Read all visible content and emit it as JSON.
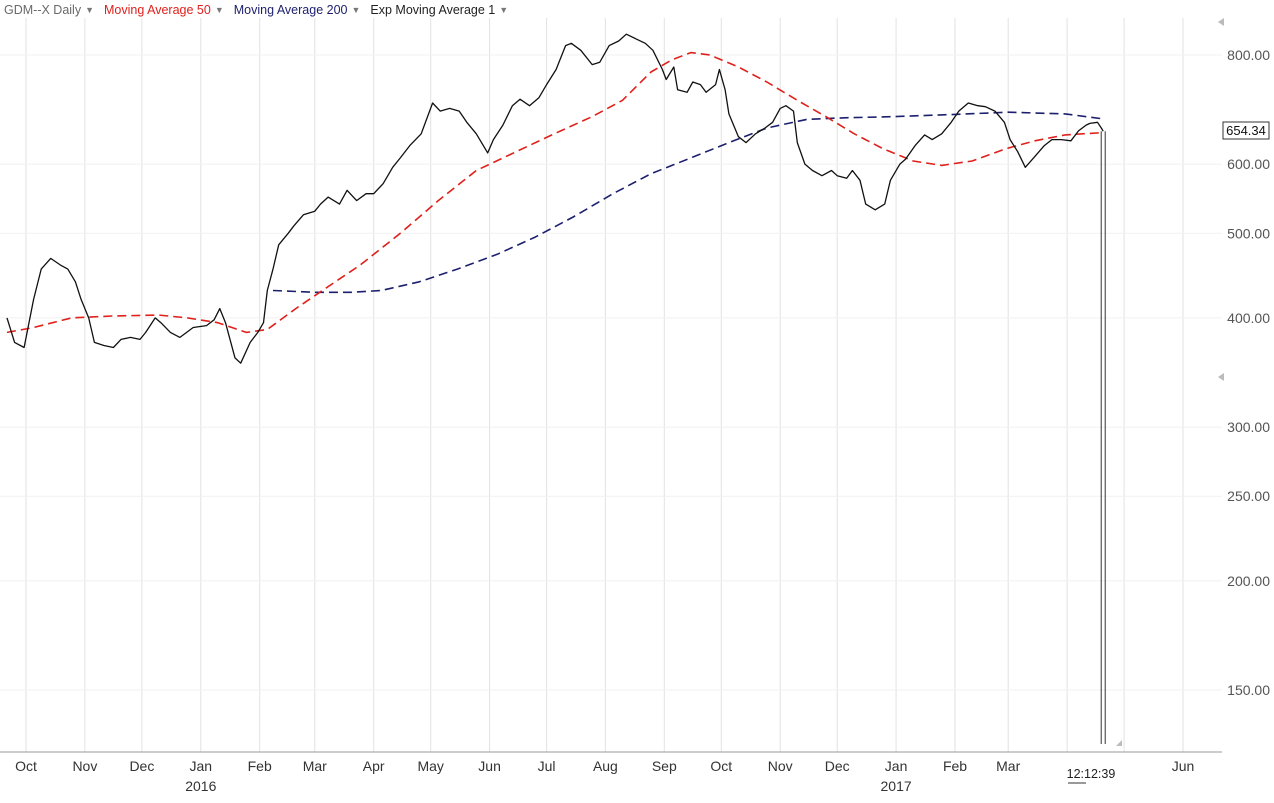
{
  "toolbar": {
    "symbol_study": "GDM--X Daily",
    "ma50_label": "Moving Average 50",
    "ma200_label": "Moving Average 200",
    "ema1_label": "Exp Moving Average 1"
  },
  "last_price_label": "654.34",
  "clock_text": "12:12:39",
  "colors": {
    "price": "#111111",
    "ma50": "#e0201b",
    "ma200": "#1c1f6e",
    "grid": "#e2e2e2",
    "label_symbol": "#6a6a6a",
    "label_black": "#222222"
  },
  "chart_data": {
    "type": "line",
    "y_scale": "log",
    "ylim": [
      130,
      870
    ],
    "y_ticks": [
      "800.00",
      "600.00",
      "500.00",
      "400.00",
      "300.00",
      "250.00",
      "200.00",
      "150.00"
    ],
    "y_tick_values": [
      800,
      600,
      500,
      400,
      300,
      250,
      200,
      150
    ],
    "x_tick_labels": [
      {
        "label": "Oct",
        "date": "2015-10-01"
      },
      {
        "label": "Nov",
        "date": "2015-11-01"
      },
      {
        "label": "Dec",
        "date": "2015-12-01"
      },
      {
        "label": "Jan",
        "date": "2016-01-01"
      },
      {
        "label": "Feb",
        "date": "2016-02-01"
      },
      {
        "label": "Mar",
        "date": "2016-03-01"
      },
      {
        "label": "Apr",
        "date": "2016-04-01"
      },
      {
        "label": "May",
        "date": "2016-05-01"
      },
      {
        "label": "Jun",
        "date": "2016-06-01"
      },
      {
        "label": "Jul",
        "date": "2016-07-01"
      },
      {
        "label": "Aug",
        "date": "2016-08-01"
      },
      {
        "label": "Sep",
        "date": "2016-09-01"
      },
      {
        "label": "Oct",
        "date": "2016-10-01"
      },
      {
        "label": "Nov",
        "date": "2016-11-01"
      },
      {
        "label": "Dec",
        "date": "2016-12-01"
      },
      {
        "label": "Jan",
        "date": "2017-01-01"
      },
      {
        "label": "Feb",
        "date": "2017-02-01"
      },
      {
        "label": "Mar",
        "date": "2017-03-01"
      },
      {
        "label": "Jun",
        "date": "2017-06-01"
      }
    ],
    "year_labels": [
      {
        "label": "2016",
        "date": "2016-01-01"
      },
      {
        "label": "2017",
        "date": "2017-01-01"
      }
    ],
    "grid_dates": [
      "2015-10-01",
      "2015-11-01",
      "2015-12-01",
      "2016-01-01",
      "2016-02-01",
      "2016-03-01",
      "2016-04-01",
      "2016-05-01",
      "2016-06-01",
      "2016-07-01",
      "2016-08-01",
      "2016-09-01",
      "2016-10-01",
      "2016-11-01",
      "2016-12-01",
      "2017-01-01",
      "2017-02-01",
      "2017-03-01",
      "2017-04-01",
      "2017-05-01",
      "2017-06-01"
    ],
    "series": [
      {
        "name": "GDM--X Daily",
        "style": "solid",
        "points": [
          [
            "2015-09-21",
            400
          ],
          [
            "2015-09-25",
            375
          ],
          [
            "2015-09-30",
            370
          ],
          [
            "2015-10-05",
            420
          ],
          [
            "2015-10-09",
            455
          ],
          [
            "2015-10-14",
            468
          ],
          [
            "2015-10-19",
            460
          ],
          [
            "2015-10-23",
            455
          ],
          [
            "2015-10-27",
            440
          ],
          [
            "2015-10-30",
            420
          ],
          [
            "2015-11-03",
            400
          ],
          [
            "2015-11-06",
            375
          ],
          [
            "2015-11-11",
            372
          ],
          [
            "2015-11-16",
            370
          ],
          [
            "2015-11-20",
            378
          ],
          [
            "2015-11-25",
            380
          ],
          [
            "2015-11-30",
            378
          ],
          [
            "2015-12-03",
            385
          ],
          [
            "2015-12-08",
            400
          ],
          [
            "2015-12-11",
            395
          ],
          [
            "2015-12-16",
            385
          ],
          [
            "2015-12-21",
            380
          ],
          [
            "2015-12-28",
            390
          ],
          [
            "2016-01-04",
            392
          ],
          [
            "2016-01-08",
            398
          ],
          [
            "2016-01-11",
            410
          ],
          [
            "2016-01-14",
            395
          ],
          [
            "2016-01-19",
            360
          ],
          [
            "2016-01-22",
            355
          ],
          [
            "2016-01-27",
            375
          ],
          [
            "2016-01-31",
            385
          ],
          [
            "2016-02-03",
            395
          ],
          [
            "2016-02-05",
            430
          ],
          [
            "2016-02-08",
            455
          ],
          [
            "2016-02-11",
            485
          ],
          [
            "2016-02-16",
            500
          ],
          [
            "2016-02-19",
            510
          ],
          [
            "2016-02-24",
            525
          ],
          [
            "2016-03-01",
            530
          ],
          [
            "2016-03-04",
            540
          ],
          [
            "2016-03-08",
            550
          ],
          [
            "2016-03-14",
            540
          ],
          [
            "2016-03-18",
            560
          ],
          [
            "2016-03-23",
            545
          ],
          [
            "2016-03-28",
            555
          ],
          [
            "2016-04-01",
            555
          ],
          [
            "2016-04-06",
            570
          ],
          [
            "2016-04-11",
            595
          ],
          [
            "2016-04-15",
            610
          ],
          [
            "2016-04-20",
            630
          ],
          [
            "2016-04-26",
            650
          ],
          [
            "2016-05-02",
            705
          ],
          [
            "2016-05-06",
            690
          ],
          [
            "2016-05-11",
            695
          ],
          [
            "2016-05-16",
            690
          ],
          [
            "2016-05-20",
            670
          ],
          [
            "2016-05-25",
            650
          ],
          [
            "2016-05-31",
            618
          ],
          [
            "2016-06-03",
            640
          ],
          [
            "2016-06-08",
            665
          ],
          [
            "2016-06-13",
            700
          ],
          [
            "2016-06-17",
            712
          ],
          [
            "2016-06-22",
            700
          ],
          [
            "2016-06-27",
            715
          ],
          [
            "2016-07-01",
            740
          ],
          [
            "2016-07-06",
            770
          ],
          [
            "2016-07-11",
            820
          ],
          [
            "2016-07-14",
            825
          ],
          [
            "2016-07-19",
            810
          ],
          [
            "2016-07-25",
            780
          ],
          [
            "2016-07-29",
            785
          ],
          [
            "2016-08-03",
            820
          ],
          [
            "2016-08-08",
            830
          ],
          [
            "2016-08-12",
            845
          ],
          [
            "2016-08-17",
            835
          ],
          [
            "2016-08-22",
            825
          ],
          [
            "2016-08-26",
            810
          ],
          [
            "2016-08-31",
            770
          ],
          [
            "2016-09-02",
            750
          ],
          [
            "2016-09-06",
            775
          ],
          [
            "2016-09-08",
            730
          ],
          [
            "2016-09-13",
            725
          ],
          [
            "2016-09-16",
            745
          ],
          [
            "2016-09-20",
            740
          ],
          [
            "2016-09-23",
            725
          ],
          [
            "2016-09-28",
            740
          ],
          [
            "2016-09-30",
            770
          ],
          [
            "2016-10-03",
            730
          ],
          [
            "2016-10-05",
            685
          ],
          [
            "2016-10-10",
            645
          ],
          [
            "2016-10-14",
            635
          ],
          [
            "2016-10-19",
            650
          ],
          [
            "2016-10-24",
            660
          ],
          [
            "2016-10-28",
            670
          ],
          [
            "2016-11-01",
            695
          ],
          [
            "2016-11-04",
            700
          ],
          [
            "2016-11-08",
            690
          ],
          [
            "2016-11-10",
            635
          ],
          [
            "2016-11-14",
            600
          ],
          [
            "2016-11-18",
            590
          ],
          [
            "2016-11-23",
            582
          ],
          [
            "2016-11-28",
            590
          ],
          [
            "2016-12-01",
            582
          ],
          [
            "2016-12-06",
            578
          ],
          [
            "2016-12-09",
            590
          ],
          [
            "2016-12-13",
            575
          ],
          [
            "2016-12-16",
            540
          ],
          [
            "2016-12-21",
            532
          ],
          [
            "2016-12-26",
            540
          ],
          [
            "2016-12-29",
            575
          ],
          [
            "2017-01-03",
            600
          ],
          [
            "2017-01-06",
            608
          ],
          [
            "2017-01-11",
            630
          ],
          [
            "2017-01-16",
            648
          ],
          [
            "2017-01-20",
            640
          ],
          [
            "2017-01-25",
            650
          ],
          [
            "2017-01-30",
            670
          ],
          [
            "2017-02-03",
            690
          ],
          [
            "2017-02-08",
            705
          ],
          [
            "2017-02-13",
            700
          ],
          [
            "2017-02-17",
            698
          ],
          [
            "2017-02-22",
            690
          ],
          [
            "2017-02-27",
            670
          ],
          [
            "2017-03-02",
            640
          ],
          [
            "2017-03-06",
            620
          ],
          [
            "2017-03-10",
            595
          ],
          [
            "2017-03-15",
            612
          ],
          [
            "2017-03-20",
            630
          ],
          [
            "2017-03-24",
            640
          ],
          [
            "2017-03-29",
            640
          ],
          [
            "2017-04-03",
            638
          ],
          [
            "2017-04-07",
            655
          ],
          [
            "2017-04-11",
            665
          ],
          [
            "2017-04-13",
            668
          ],
          [
            "2017-04-17",
            670
          ],
          [
            "2017-04-19",
            660
          ],
          [
            "2017-04-20",
            654.34
          ]
        ]
      },
      {
        "name": "Moving Average 50",
        "style": "dashed",
        "points": [
          [
            "2015-09-21",
            385
          ],
          [
            "2015-10-05",
            390
          ],
          [
            "2015-10-25",
            400
          ],
          [
            "2015-11-15",
            402
          ],
          [
            "2015-12-10",
            403
          ],
          [
            "2015-12-25",
            400
          ],
          [
            "2016-01-10",
            395
          ],
          [
            "2016-01-25",
            385
          ],
          [
            "2016-02-05",
            388
          ],
          [
            "2016-02-20",
            410
          ],
          [
            "2016-03-05",
            430
          ],
          [
            "2016-03-25",
            460
          ],
          [
            "2016-04-15",
            500
          ],
          [
            "2016-05-05",
            545
          ],
          [
            "2016-05-25",
            590
          ],
          [
            "2016-06-15",
            620
          ],
          [
            "2016-07-05",
            650
          ],
          [
            "2016-07-25",
            680
          ],
          [
            "2016-08-10",
            710
          ],
          [
            "2016-08-25",
            765
          ],
          [
            "2016-09-05",
            790
          ],
          [
            "2016-09-15",
            805
          ],
          [
            "2016-09-25",
            800
          ],
          [
            "2016-10-10",
            775
          ],
          [
            "2016-10-25",
            745
          ],
          [
            "2016-11-10",
            710
          ],
          [
            "2016-11-25",
            680
          ],
          [
            "2016-12-10",
            650
          ],
          [
            "2016-12-25",
            625
          ],
          [
            "2017-01-10",
            605
          ],
          [
            "2017-01-25",
            598
          ],
          [
            "2017-02-10",
            605
          ],
          [
            "2017-02-28",
            625
          ],
          [
            "2017-03-15",
            638
          ],
          [
            "2017-03-31",
            648
          ],
          [
            "2017-04-20",
            652
          ]
        ]
      },
      {
        "name": "Moving Average 200",
        "style": "dashed",
        "points": [
          [
            "2016-02-08",
            430
          ],
          [
            "2016-03-01",
            428
          ],
          [
            "2016-03-20",
            428
          ],
          [
            "2016-04-05",
            430
          ],
          [
            "2016-04-25",
            440
          ],
          [
            "2016-05-15",
            455
          ],
          [
            "2016-06-05",
            473
          ],
          [
            "2016-06-25",
            495
          ],
          [
            "2016-07-15",
            522
          ],
          [
            "2016-08-05",
            555
          ],
          [
            "2016-08-25",
            585
          ],
          [
            "2016-09-15",
            610
          ],
          [
            "2016-10-05",
            635
          ],
          [
            "2016-10-25",
            660
          ],
          [
            "2016-11-15",
            675
          ],
          [
            "2016-12-05",
            678
          ],
          [
            "2016-12-31",
            680
          ],
          [
            "2017-02-01",
            684
          ],
          [
            "2017-03-01",
            688
          ],
          [
            "2017-03-31",
            685
          ],
          [
            "2017-04-20",
            676
          ]
        ]
      }
    ]
  }
}
